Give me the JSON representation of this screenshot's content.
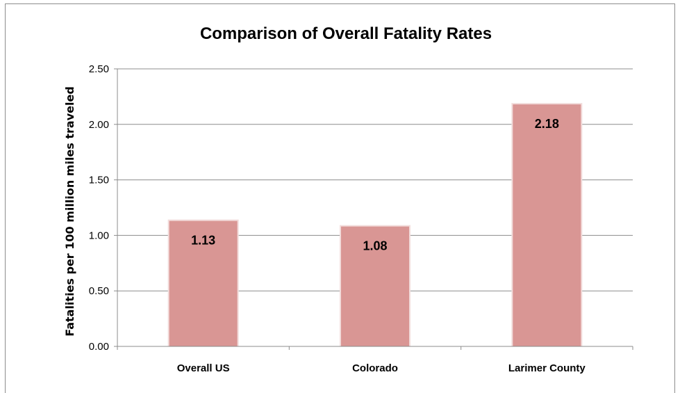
{
  "chart_data": {
    "type": "bar",
    "title": "Comparison of Overall Fatality Rates",
    "xlabel": "",
    "ylabel": "Fatalities per 100 million miles traveled",
    "categories": [
      "Overall US",
      "Colorado",
      "Larimer County"
    ],
    "values": [
      1.13,
      1.08,
      2.18
    ],
    "data_labels": [
      "1.13",
      "1.08",
      "2.18"
    ],
    "ylim": [
      0,
      2.5
    ],
    "yticks": [
      0,
      0.5,
      1.0,
      1.5,
      2.0,
      2.5
    ],
    "ytick_labels": [
      "0.00",
      "0.50",
      "1.00",
      "1.50",
      "2.00",
      "2.50"
    ],
    "grid": true,
    "legend": "none",
    "colors": {
      "bar": "#d99694",
      "bar_highlight": "#f2dcdb",
      "grid": "#8c8c8c",
      "axis": "#8c8c8c"
    }
  }
}
